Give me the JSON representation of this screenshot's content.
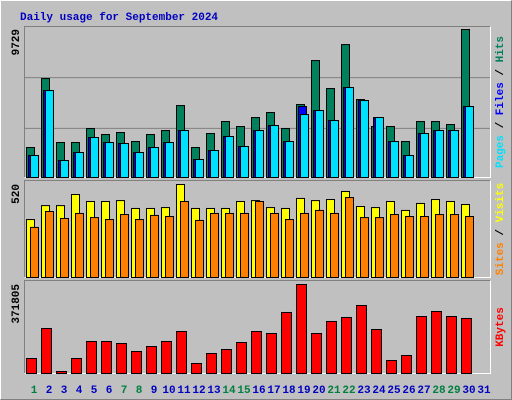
{
  "chart_data": [
    {
      "type": "bar",
      "title": "Daily usage for September 2024",
      "title_color": "#0000c0",
      "ylim": [
        0,
        9729
      ],
      "yticks": [
        9729
      ],
      "legend_separator": " / ",
      "series": [
        {
          "name": "Hits",
          "color": "#00805c",
          "values": [
            1971,
            6504,
            2300,
            2300,
            3219,
            2825,
            2957,
            2365,
            2825,
            3088,
            4730,
            1971,
            2891,
            3679,
            3351,
            3942,
            4271,
            3219,
            4796,
            7687,
            5847,
            8738,
            5125,
            3351,
            3351,
            2365,
            3679,
            3679,
            3482,
            9729,
            null
          ]
        },
        {
          "name": "Files",
          "color": "#0000ff",
          "values": [
            1445,
            5716,
            1117,
            1643,
            2628,
            2300,
            2234,
            1643,
            1971,
            2300,
            3088,
            1183,
            1774,
            2694,
            2037,
            3088,
            3416,
            2365,
            4665,
            4402,
            3745,
            5913,
            5059,
            3942,
            2365,
            1445,
            2891,
            3088,
            3088,
            4665,
            null
          ]
        },
        {
          "name": "Pages",
          "color": "#00e0ff",
          "values": [
            1445,
            5716,
            1117,
            1643,
            2628,
            2300,
            2234,
            1643,
            1971,
            2300,
            3088,
            1183,
            1774,
            2694,
            2037,
            3088,
            3416,
            2365,
            4139,
            4402,
            3745,
            5913,
            5059,
            3942,
            2365,
            1445,
            2891,
            3088,
            3088,
            4665,
            null
          ]
        }
      ]
    },
    {
      "type": "bar",
      "ylim": [
        0,
        520
      ],
      "yticks": [
        520
      ],
      "legend_separator": " / ",
      "series": [
        {
          "name": "Visits",
          "color": "#ffff00",
          "values": [
            324,
            402,
            402,
            464,
            425,
            425,
            430,
            386,
            386,
            391,
            520,
            386,
            386,
            386,
            425,
            430,
            391,
            386,
            442,
            430,
            436,
            481,
            397,
            391,
            425,
            375,
            414,
            436,
            425,
            408,
            null
          ]
        },
        {
          "name": "Sites",
          "color": "#ff8000",
          "values": [
            280,
            369,
            330,
            358,
            335,
            324,
            352,
            324,
            347,
            341,
            425,
            319,
            358,
            358,
            358,
            425,
            358,
            324,
            358,
            375,
            358,
            447,
            335,
            335,
            352,
            341,
            341,
            352,
            352,
            341,
            null
          ]
        }
      ]
    },
    {
      "type": "bar",
      "ylim": [
        0,
        371805
      ],
      "yticks": [
        371805
      ],
      "categories": [
        "1",
        "2",
        "3",
        "4",
        "5",
        "6",
        "7",
        "8",
        "9",
        "10",
        "11",
        "12",
        "13",
        "14",
        "15",
        "16",
        "17",
        "18",
        "19",
        "20",
        "21",
        "22",
        "23",
        "24",
        "25",
        "26",
        "27",
        "28",
        "29",
        "30",
        "31"
      ],
      "category_colors": [
        "#008040",
        "#0000c0",
        "#0000c0",
        "#0000c0",
        "#0000c0",
        "#0000c0",
        "#008040",
        "#008040",
        "#0000c0",
        "#0000c0",
        "#0000c0",
        "#0000c0",
        "#0000c0",
        "#008040",
        "#008040",
        "#0000c0",
        "#0000c0",
        "#0000c0",
        "#0000c0",
        "#0000c0",
        "#008040",
        "#008040",
        "#0000c0",
        "#0000c0",
        "#0000c0",
        "#0000c0",
        "#0000c0",
        "#008040",
        "#008040",
        "#0000c0",
        "#0000c0"
      ],
      "series": [
        {
          "name": "KBytes",
          "color": "#ff0000",
          "values": [
            62670,
            188000,
            8360,
            62670,
            133700,
            133700,
            125300,
            91900,
            112800,
            133700,
            175500,
            41780,
            83560,
            100270,
            129500,
            175500,
            167100,
            254900,
            371805,
            167100,
            217300,
            234000,
            284100,
            183800,
            54310,
            75200,
            238100,
            259000,
            238100,
            229800,
            null
          ]
        }
      ]
    }
  ]
}
